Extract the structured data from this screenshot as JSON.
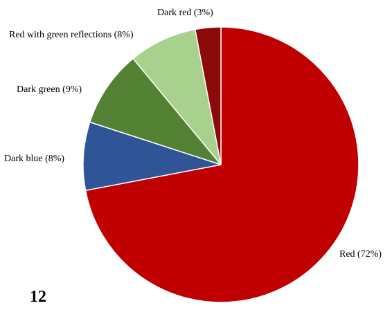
{
  "chart_data": {
    "type": "pie",
    "title": "",
    "start": "12 o'clock",
    "direction": "clockwise",
    "slices": [
      {
        "label": "Red (72%)",
        "value": 72,
        "color": "#C00000"
      },
      {
        "label": "Dark blue (8%)",
        "value": 8,
        "color": "#2F5597"
      },
      {
        "label": "Dark green (9%)",
        "value": 9,
        "color": "#548235"
      },
      {
        "label": "Red with green reflections (8%)",
        "value": 8,
        "color": "#A9D18E"
      },
      {
        "label": "Dark red (3%)",
        "value": 3,
        "color": "#8B0A0A"
      }
    ]
  },
  "page": {
    "number": "12"
  }
}
